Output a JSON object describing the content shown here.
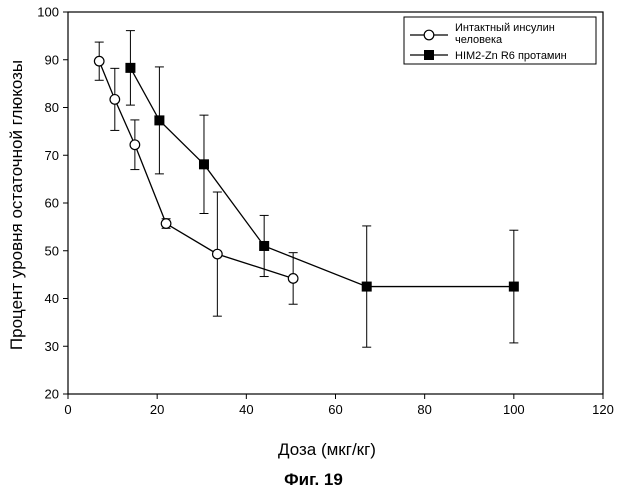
{
  "chart_data": {
    "type": "line",
    "title": "",
    "xlabel": "Доза (мкг/кг)",
    "ylabel": "Процент уровня остаточной глюкозы",
    "xlim": [
      0,
      120
    ],
    "ylim": [
      20,
      100
    ],
    "x_ticks": [
      0,
      20,
      40,
      60,
      80,
      100,
      120
    ],
    "y_ticks": [
      20,
      30,
      40,
      50,
      60,
      70,
      80,
      90,
      100
    ],
    "grid": false,
    "legend_position": "top-right",
    "series": [
      {
        "name": "Интактный инсулин человека",
        "marker": "open-circle",
        "color": "#000000",
        "points": [
          {
            "x": 7,
            "y": 89.7,
            "err_low": 4,
            "err_high": 4
          },
          {
            "x": 10.5,
            "y": 81.7,
            "err_low": 6.5,
            "err_high": 6.5
          },
          {
            "x": 15,
            "y": 72.2,
            "err_low": 5.2,
            "err_high": 5.2
          },
          {
            "x": 22,
            "y": 55.7,
            "err_low": 1,
            "err_high": 1
          },
          {
            "x": 33.5,
            "y": 49.3,
            "err_low": 13,
            "err_high": 13
          },
          {
            "x": 50.5,
            "y": 44.2,
            "err_low": 5.4,
            "err_high": 5.4
          }
        ]
      },
      {
        "name": "HIM2-Zn R6 протамин",
        "marker": "filled-square",
        "color": "#000000",
        "points": [
          {
            "x": 14,
            "y": 88.3,
            "err_low": 7.8,
            "err_high": 7.8
          },
          {
            "x": 20.5,
            "y": 77.3,
            "err_low": 11.2,
            "err_high": 11.2
          },
          {
            "x": 30.5,
            "y": 68.1,
            "err_low": 10.3,
            "err_high": 10.3
          },
          {
            "x": 44,
            "y": 51,
            "err_low": 6.4,
            "err_high": 6.4
          },
          {
            "x": 67,
            "y": 42.5,
            "err_low": 12.7,
            "err_high": 12.7
          },
          {
            "x": 100,
            "y": 42.5,
            "err_low": 11.8,
            "err_high": 11.8
          }
        ]
      }
    ]
  },
  "figure_caption": "Фиг. 19"
}
